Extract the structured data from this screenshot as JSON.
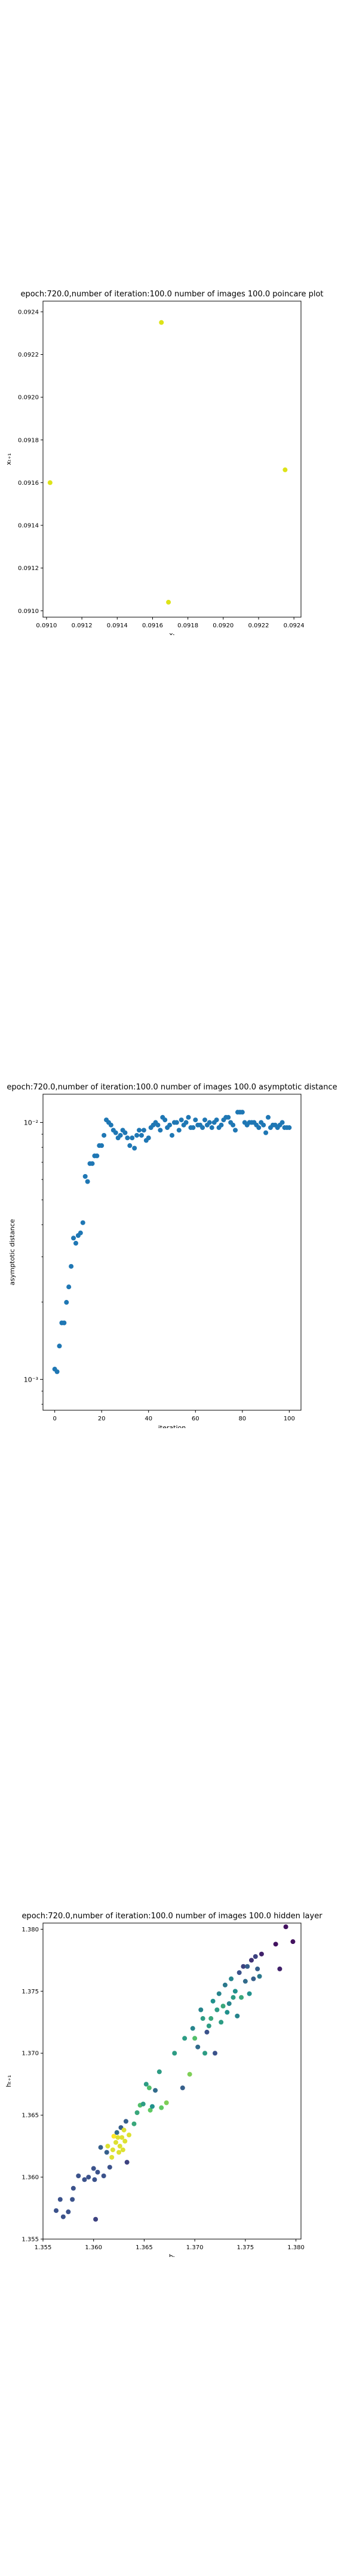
{
  "chart_data": [
    {
      "type": "scatter",
      "title": "epoch:720.0,number of iteration:100.0 number of images 100.0 poincare plot",
      "xlabel": "xₜ",
      "ylabel": "xₜ₊₁",
      "xlim": [
        0.09098,
        0.09244
      ],
      "ylim": [
        0.09097,
        0.09245
      ],
      "xticks": [
        "0.0910",
        "0.0912",
        "0.0914",
        "0.0916",
        "0.0918",
        "0.0920",
        "0.0922",
        "0.0924"
      ],
      "yticks": [
        "0.0910",
        "0.0912",
        "0.0914",
        "0.0916",
        "0.0918",
        "0.0920",
        "0.0922",
        "0.0924"
      ],
      "marker_color": "#dde318",
      "points": [
        {
          "x": 0.09102,
          "y": 0.0916
        },
        {
          "x": 0.09165,
          "y": 0.09235
        },
        {
          "x": 0.09169,
          "y": 0.09104
        },
        {
          "x": 0.09235,
          "y": 0.09166
        }
      ]
    },
    {
      "type": "scatter",
      "title": "epoch:720.0,number of iteration:100.0  number of images 100.0 asymptotic distance",
      "xlabel": "iteration",
      "ylabel": "asymptotic distance",
      "xlim": [
        -5,
        105
      ],
      "ylim_log10": [
        -3.12,
        -1.89
      ],
      "yscale": "log",
      "xticks": [
        "0",
        "20",
        "40",
        "60",
        "80",
        "100"
      ],
      "yticks": [
        "10⁻³",
        "10⁻²"
      ],
      "marker_color": "#1f77b4",
      "log10_values": [
        -2.96,
        -2.97,
        -2.87,
        -2.78,
        -2.78,
        -2.7,
        -2.64,
        -2.56,
        -2.45,
        -2.47,
        -2.44,
        -2.43,
        -2.39,
        -2.21,
        -2.23,
        -2.16,
        -2.16,
        -2.13,
        -2.13,
        -2.09,
        -2.09,
        -2.05,
        -1.99,
        -2.0,
        -2.01,
        -2.03,
        -2.04,
        -2.06,
        -2.05,
        -2.03,
        -2.04,
        -2.06,
        -2.09,
        -2.06,
        -2.1,
        -2.05,
        -2.03,
        -2.05,
        -2.03,
        -2.07,
        -2.06,
        -2.02,
        -2.01,
        -2.0,
        -2.01,
        -2.03,
        -1.98,
        -1.99,
        -2.02,
        -2.01,
        -2.05,
        -2.0,
        -2.0,
        -2.03,
        -1.99,
        -2.01,
        -2.0,
        -1.98,
        -2.02,
        -2.02,
        -1.99,
        -2.01,
        -2.01,
        -2.02,
        -1.99,
        -2.01,
        -2.0,
        -2.02,
        -2.0,
        -1.99,
        -2.02,
        -2.01,
        -1.99,
        -1.98,
        -1.98,
        -2.0,
        -2.01,
        -2.03,
        -1.96,
        -1.96,
        -1.96,
        -2.0,
        -2.01,
        -2.0,
        -2.0,
        -2.0,
        -2.01,
        -2.02,
        -2.0,
        -2.01,
        -2.04,
        -1.98,
        -2.02,
        -2.01,
        -2.01,
        -2.02,
        -2.01,
        -2.0,
        -2.02,
        -2.02,
        -2.02
      ]
    },
    {
      "type": "scatter",
      "title": "epoch:720.0,number of iteration:100.0  number of images 100.0 hidden layer",
      "xlabel": "hₜ",
      "ylabel": "hₜ₊₁",
      "xlim": [
        1.355,
        1.3805
      ],
      "ylim": [
        1.355,
        1.3805
      ],
      "xticks": [
        "1.355",
        "1.360",
        "1.365",
        "1.370",
        "1.375",
        "1.380"
      ],
      "yticks": [
        "1.355",
        "1.360",
        "1.365",
        "1.370",
        "1.375",
        "1.380"
      ],
      "colormap": [
        "#440154",
        "#3b528b",
        "#21918c",
        "#5ec962",
        "#fde725"
      ],
      "points": [
        {
          "x": 1.3563,
          "y": 1.3573,
          "c": 0.25
        },
        {
          "x": 1.3567,
          "y": 1.3582,
          "c": 0.25
        },
        {
          "x": 1.357,
          "y": 1.3568,
          "c": 0.25
        },
        {
          "x": 1.3575,
          "y": 1.3572,
          "c": 0.25
        },
        {
          "x": 1.3579,
          "y": 1.3582,
          "c": 0.25
        },
        {
          "x": 1.358,
          "y": 1.3591,
          "c": 0.25
        },
        {
          "x": 1.3585,
          "y": 1.3601,
          "c": 0.25
        },
        {
          "x": 1.3591,
          "y": 1.3598,
          "c": 0.25
        },
        {
          "x": 1.3595,
          "y": 1.36,
          "c": 0.25
        },
        {
          "x": 1.36,
          "y": 1.3607,
          "c": 0.25
        },
        {
          "x": 1.3601,
          "y": 1.3598,
          "c": 0.25
        },
        {
          "x": 1.3602,
          "y": 1.3566,
          "c": 0.2
        },
        {
          "x": 1.3604,
          "y": 1.3604,
          "c": 0.25
        },
        {
          "x": 1.3607,
          "y": 1.3624,
          "c": 0.3
        },
        {
          "x": 1.361,
          "y": 1.3601,
          "c": 0.25
        },
        {
          "x": 1.3613,
          "y": 1.362,
          "c": 0.3
        },
        {
          "x": 1.3614,
          "y": 1.3625,
          "c": 0.95
        },
        {
          "x": 1.3616,
          "y": 1.3608,
          "c": 0.25
        },
        {
          "x": 1.3618,
          "y": 1.3616,
          "c": 0.95
        },
        {
          "x": 1.3619,
          "y": 1.3622,
          "c": 0.95
        },
        {
          "x": 1.362,
          "y": 1.3633,
          "c": 1.0
        },
        {
          "x": 1.3622,
          "y": 1.3628,
          "c": 0.95
        },
        {
          "x": 1.3623,
          "y": 1.3636,
          "c": 0.35
        },
        {
          "x": 1.3624,
          "y": 1.3632,
          "c": 0.95
        },
        {
          "x": 1.3625,
          "y": 1.362,
          "c": 0.95
        },
        {
          "x": 1.3626,
          "y": 1.3625,
          "c": 0.95
        },
        {
          "x": 1.3627,
          "y": 1.364,
          "c": 0.3
        },
        {
          "x": 1.3628,
          "y": 1.3632,
          "c": 0.95
        },
        {
          "x": 1.3629,
          "y": 1.3622,
          "c": 0.95
        },
        {
          "x": 1.363,
          "y": 1.3638,
          "c": 0.95
        },
        {
          "x": 1.3631,
          "y": 1.3629,
          "c": 0.95
        },
        {
          "x": 1.3632,
          "y": 1.3645,
          "c": 0.3
        },
        {
          "x": 1.3633,
          "y": 1.3612,
          "c": 0.2
        },
        {
          "x": 1.3635,
          "y": 1.3634,
          "c": 0.95
        },
        {
          "x": 1.364,
          "y": 1.3643,
          "c": 0.6
        },
        {
          "x": 1.3643,
          "y": 1.3652,
          "c": 0.6
        },
        {
          "x": 1.3646,
          "y": 1.3658,
          "c": 0.7
        },
        {
          "x": 1.3649,
          "y": 1.3659,
          "c": 0.55
        },
        {
          "x": 1.3652,
          "y": 1.3675,
          "c": 0.55
        },
        {
          "x": 1.3655,
          "y": 1.3672,
          "c": 0.7
        },
        {
          "x": 1.3656,
          "y": 1.3654,
          "c": 0.75
        },
        {
          "x": 1.3658,
          "y": 1.3657,
          "c": 0.5
        },
        {
          "x": 1.3661,
          "y": 1.367,
          "c": 0.35
        },
        {
          "x": 1.3665,
          "y": 1.3685,
          "c": 0.55
        },
        {
          "x": 1.3667,
          "y": 1.3656,
          "c": 0.75
        },
        {
          "x": 1.3672,
          "y": 1.366,
          "c": 0.8
        },
        {
          "x": 1.368,
          "y": 1.37,
          "c": 0.55
        },
        {
          "x": 1.3688,
          "y": 1.3672,
          "c": 0.3
        },
        {
          "x": 1.369,
          "y": 1.3712,
          "c": 0.55
        },
        {
          "x": 1.3695,
          "y": 1.3683,
          "c": 0.8
        },
        {
          "x": 1.3698,
          "y": 1.372,
          "c": 0.45
        },
        {
          "x": 1.37,
          "y": 1.3712,
          "c": 0.7
        },
        {
          "x": 1.3703,
          "y": 1.3705,
          "c": 0.35
        },
        {
          "x": 1.3706,
          "y": 1.3735,
          "c": 0.45
        },
        {
          "x": 1.3708,
          "y": 1.3728,
          "c": 0.55
        },
        {
          "x": 1.371,
          "y": 1.37,
          "c": 0.55
        },
        {
          "x": 1.3712,
          "y": 1.3717,
          "c": 0.25
        },
        {
          "x": 1.3714,
          "y": 1.3722,
          "c": 0.55
        },
        {
          "x": 1.3716,
          "y": 1.3728,
          "c": 0.6
        },
        {
          "x": 1.3718,
          "y": 1.3742,
          "c": 0.5
        },
        {
          "x": 1.372,
          "y": 1.37,
          "c": 0.25
        },
        {
          "x": 1.3722,
          "y": 1.3735,
          "c": 0.55
        },
        {
          "x": 1.3724,
          "y": 1.3748,
          "c": 0.45
        },
        {
          "x": 1.3726,
          "y": 1.3725,
          "c": 0.55
        },
        {
          "x": 1.3728,
          "y": 1.3738,
          "c": 0.6
        },
        {
          "x": 1.373,
          "y": 1.3755,
          "c": 0.4
        },
        {
          "x": 1.3732,
          "y": 1.3733,
          "c": 0.5
        },
        {
          "x": 1.3734,
          "y": 1.374,
          "c": 0.45
        },
        {
          "x": 1.3736,
          "y": 1.376,
          "c": 0.45
        },
        {
          "x": 1.3738,
          "y": 1.3745,
          "c": 0.55
        },
        {
          "x": 1.374,
          "y": 1.375,
          "c": 0.5
        },
        {
          "x": 1.3742,
          "y": 1.373,
          "c": 0.45
        },
        {
          "x": 1.3744,
          "y": 1.3765,
          "c": 0.25
        },
        {
          "x": 1.3746,
          "y": 1.3745,
          "c": 0.6
        },
        {
          "x": 1.3748,
          "y": 1.377,
          "c": 0.2
        },
        {
          "x": 1.375,
          "y": 1.3758,
          "c": 0.35
        },
        {
          "x": 1.3752,
          "y": 1.377,
          "c": 0.3
        },
        {
          "x": 1.3754,
          "y": 1.3748,
          "c": 0.5
        },
        {
          "x": 1.3756,
          "y": 1.3775,
          "c": 0.15
        },
        {
          "x": 1.3758,
          "y": 1.376,
          "c": 0.3
        },
        {
          "x": 1.376,
          "y": 1.3778,
          "c": 0.2
        },
        {
          "x": 1.3762,
          "y": 1.3768,
          "c": 0.3
        },
        {
          "x": 1.3764,
          "y": 1.3762,
          "c": 0.4
        },
        {
          "x": 1.3766,
          "y": 1.378,
          "c": 0.1
        },
        {
          "x": 1.378,
          "y": 1.3788,
          "c": 0.05
        },
        {
          "x": 1.3784,
          "y": 1.3768,
          "c": 0.1
        },
        {
          "x": 1.379,
          "y": 1.3802,
          "c": 0.05
        },
        {
          "x": 1.3797,
          "y": 1.379,
          "c": 0.05
        }
      ]
    }
  ]
}
